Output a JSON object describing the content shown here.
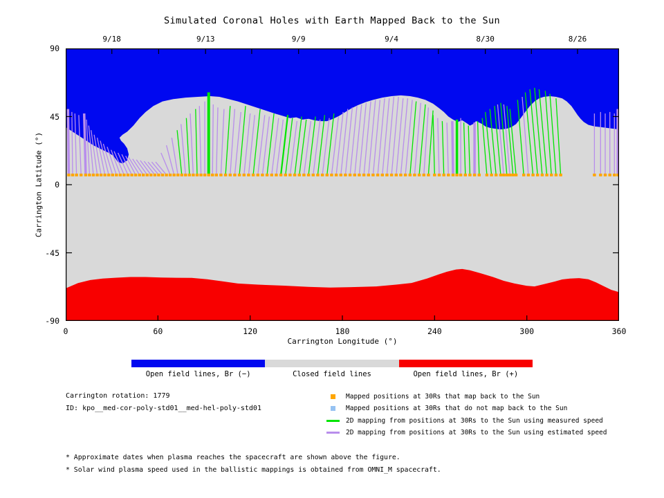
{
  "title": "Simulated Coronal Holes with Earth Mapped Back to the Sun",
  "colors": {
    "open_negative": "#0008f0",
    "closed": "#d9d9d9",
    "open_positive": "#f80000",
    "measured_line": "#00e400",
    "estimated_line": "#b88dec",
    "mapped_point": "#ffa600",
    "unmapped_point": "#96c2f2",
    "axis": "#000000"
  },
  "chart_data": {
    "type": "area",
    "title": "Simulated Coronal Holes with Earth Mapped Back to the Sun",
    "xlabel": "Carrington Longitude (°)",
    "ylabel": "Carrington Latitude (°)",
    "xlim": [
      0,
      360
    ],
    "ylim": [
      -90,
      90
    ],
    "x_ticks": [
      0,
      60,
      120,
      180,
      240,
      300,
      360
    ],
    "y_ticks": [
      90,
      45,
      0,
      -45,
      -90
    ],
    "y_side_ticks": [
      45,
      0,
      -45
    ],
    "top_tick_lons": [
      30,
      60.5,
      91,
      121,
      151.5,
      182,
      212,
      242.5,
      273,
      303,
      333
    ],
    "top_date_labels": [
      {
        "label": "9/18",
        "lon": 30
      },
      {
        "label": "9/13",
        "lon": 91
      },
      {
        "label": "9/9",
        "lon": 151.5
      },
      {
        "label": "9/4",
        "lon": 212
      },
      {
        "label": "8/30",
        "lon": 273
      },
      {
        "label": "8/26",
        "lon": 333
      }
    ],
    "mapped_positions_lat": 6.5,
    "blue_boundary": [
      [
        0,
        38
      ],
      [
        6,
        34
      ],
      [
        12,
        30
      ],
      [
        18,
        26
      ],
      [
        24,
        23
      ],
      [
        28,
        21
      ],
      [
        31,
        19
      ],
      [
        34,
        15
      ],
      [
        37,
        14
      ],
      [
        40,
        16
      ],
      [
        41,
        20
      ],
      [
        40,
        24
      ],
      [
        38,
        27
      ],
      [
        36,
        29
      ],
      [
        35,
        31
      ],
      [
        37,
        33
      ],
      [
        40,
        35
      ],
      [
        44,
        39
      ],
      [
        48,
        44
      ],
      [
        52,
        48
      ],
      [
        57,
        52
      ],
      [
        63,
        55
      ],
      [
        70,
        56.5
      ],
      [
        78,
        57.5
      ],
      [
        86,
        58
      ],
      [
        94,
        58.5
      ],
      [
        100,
        58
      ],
      [
        106,
        56.5
      ],
      [
        112,
        55
      ],
      [
        118,
        53
      ],
      [
        124,
        51
      ],
      [
        130,
        49
      ],
      [
        136,
        47
      ],
      [
        141,
        45.5
      ],
      [
        146,
        44
      ],
      [
        150,
        44.5
      ],
      [
        154,
        43
      ],
      [
        158,
        43.5
      ],
      [
        162,
        42.5
      ],
      [
        166,
        42
      ],
      [
        170,
        42
      ],
      [
        174,
        43.5
      ],
      [
        178,
        45.5
      ],
      [
        182,
        48
      ],
      [
        186,
        50.5
      ],
      [
        190,
        52.5
      ],
      [
        195,
        54.5
      ],
      [
        200,
        56
      ],
      [
        206,
        57.5
      ],
      [
        212,
        58.5
      ],
      [
        218,
        59
      ],
      [
        224,
        58.5
      ],
      [
        229,
        57.5
      ],
      [
        234,
        56
      ],
      [
        239,
        53.5
      ],
      [
        243,
        50.5
      ],
      [
        246,
        48
      ],
      [
        249,
        45
      ],
      [
        252,
        43
      ],
      [
        255,
        41.5
      ],
      [
        258,
        42.5
      ],
      [
        261,
        40.5
      ],
      [
        263,
        39
      ],
      [
        265,
        40
      ],
      [
        267,
        42
      ],
      [
        269,
        41
      ],
      [
        271,
        40
      ],
      [
        273,
        38.5
      ],
      [
        276,
        37.5
      ],
      [
        279,
        37
      ],
      [
        283,
        36.5
      ],
      [
        287,
        37
      ],
      [
        290,
        38
      ],
      [
        293,
        40
      ],
      [
        296,
        44
      ],
      [
        299,
        48
      ],
      [
        302,
        52
      ],
      [
        305,
        55
      ],
      [
        308,
        57
      ],
      [
        311,
        58
      ],
      [
        315,
        58.5
      ],
      [
        319,
        58
      ],
      [
        323,
        57
      ],
      [
        326,
        55
      ],
      [
        329,
        52
      ],
      [
        331,
        49
      ],
      [
        333,
        46
      ],
      [
        335,
        43.5
      ],
      [
        337,
        41.5
      ],
      [
        340,
        39.5
      ],
      [
        344,
        38.5
      ],
      [
        348,
        38
      ],
      [
        352,
        37.5
      ],
      [
        356,
        37
      ],
      [
        360,
        36.5
      ]
    ],
    "red_boundary": [
      [
        0,
        -68.5
      ],
      [
        8,
        -65
      ],
      [
        16,
        -63
      ],
      [
        24,
        -62
      ],
      [
        32,
        -61.5
      ],
      [
        42,
        -61
      ],
      [
        52,
        -61
      ],
      [
        62,
        -61.3
      ],
      [
        72,
        -61.5
      ],
      [
        82,
        -61.6
      ],
      [
        92,
        -62.5
      ],
      [
        102,
        -63.8
      ],
      [
        112,
        -65.3
      ],
      [
        125,
        -66
      ],
      [
        142,
        -66.7
      ],
      [
        158,
        -67.5
      ],
      [
        172,
        -68
      ],
      [
        188,
        -67.6
      ],
      [
        202,
        -67.2
      ],
      [
        215,
        -66
      ],
      [
        225,
        -64.9
      ],
      [
        235,
        -62
      ],
      [
        242,
        -59.5
      ],
      [
        248,
        -57.5
      ],
      [
        254,
        -56
      ],
      [
        258,
        -55.7
      ],
      [
        263,
        -56.5
      ],
      [
        270,
        -58.5
      ],
      [
        278,
        -61
      ],
      [
        285,
        -63.5
      ],
      [
        292,
        -65.3
      ],
      [
        300,
        -66.8
      ],
      [
        305,
        -67.2
      ],
      [
        312,
        -65.5
      ],
      [
        318,
        -64
      ],
      [
        323,
        -62.6
      ],
      [
        328,
        -62
      ],
      [
        334,
        -61.7
      ],
      [
        340,
        -62.5
      ],
      [
        345,
        -64.5
      ],
      [
        350,
        -67
      ],
      [
        355,
        -69.5
      ],
      [
        360,
        -71
      ]
    ],
    "field_lines": [
      [
        2,
        50,
        "p",
        3.5,
        -0.5
      ],
      [
        4.5,
        48,
        "p",
        1.3,
        -0.5
      ],
      [
        7,
        47,
        "p",
        1.3,
        -1
      ],
      [
        10,
        46,
        "p",
        1.3,
        -1.5
      ],
      [
        13,
        47,
        "p",
        3.5,
        -1
      ],
      [
        15.5,
        43,
        "p",
        1.3,
        -2
      ],
      [
        18,
        39,
        "p",
        1.3,
        -3
      ],
      [
        20.5,
        36,
        "p",
        1.3,
        -4
      ],
      [
        23,
        33,
        "p",
        1.3,
        -4.5
      ],
      [
        25.5,
        31,
        "p",
        1.3,
        -5
      ],
      [
        28,
        29,
        "p",
        1.3,
        -5.5
      ],
      [
        30.5,
        27,
        "p",
        1.3,
        -6
      ],
      [
        33,
        25,
        "p",
        1.3,
        -6
      ],
      [
        35.5,
        23,
        "p",
        1.3,
        -6
      ],
      [
        38,
        22,
        "p",
        1.3,
        -6.5
      ],
      [
        40.5,
        21,
        "p",
        1.3,
        -6.5
      ],
      [
        43,
        20,
        "p",
        1.3,
        -6.5
      ],
      [
        45.5,
        19,
        "p",
        1.3,
        -6.5
      ],
      [
        48,
        18,
        "p",
        1.3,
        -7
      ],
      [
        50.5,
        17,
        "p",
        1.3,
        -7
      ],
      [
        53,
        16.5,
        "p",
        1.3,
        -7
      ],
      [
        55.5,
        16,
        "p",
        1.3,
        -7
      ],
      [
        58,
        15.5,
        "p",
        1.3,
        -7
      ],
      [
        60.5,
        15,
        "p",
        1.3,
        -7
      ],
      [
        63,
        15,
        "p",
        1.3,
        -7
      ],
      [
        65.5,
        15,
        "p",
        1.3,
        -7
      ],
      [
        68,
        21,
        "p",
        1.3,
        -6
      ],
      [
        70.5,
        26,
        "p",
        1.3,
        -5
      ],
      [
        73,
        31,
        "p",
        1.3,
        -4
      ],
      [
        75.5,
        36,
        "g",
        1.3,
        -3
      ],
      [
        78,
        40,
        "p",
        1.3,
        -3
      ],
      [
        80.5,
        44,
        "g",
        1.3,
        -2
      ],
      [
        83,
        47,
        "p",
        1.3,
        -2
      ],
      [
        85.5,
        50,
        "g",
        1.3,
        -1
      ],
      [
        88,
        52,
        "p",
        1.3,
        -1
      ],
      [
        90.5,
        55,
        "p",
        1.3,
        0
      ],
      [
        93,
        61,
        "g",
        4,
        0
      ],
      [
        95.5,
        53,
        "p",
        1.3,
        0.5
      ],
      [
        98,
        51,
        "p",
        1.3,
        1
      ],
      [
        101,
        50,
        "p",
        1.3,
        2
      ],
      [
        104,
        52,
        "g",
        1.3,
        3
      ],
      [
        107,
        50,
        "p",
        1.3,
        3
      ],
      [
        110,
        48,
        "p",
        1.3,
        4
      ],
      [
        113,
        52,
        "g",
        1.3,
        4
      ],
      [
        116,
        47,
        "p",
        1.3,
        4
      ],
      [
        119,
        46,
        "p",
        1.3,
        4
      ],
      [
        122,
        50,
        "g",
        1.3,
        4.5
      ],
      [
        125,
        46,
        "p",
        1.3,
        4.5
      ],
      [
        128,
        45,
        "p",
        1.3,
        4.5
      ],
      [
        131,
        47,
        "g",
        1.3,
        4.5
      ],
      [
        134,
        44,
        "p",
        1.3,
        4.5
      ],
      [
        137,
        43,
        "p",
        1.3,
        4.5
      ],
      [
        140,
        46,
        "g",
        2.2,
        4.5
      ],
      [
        143,
        44,
        "g",
        1.3,
        4.5
      ],
      [
        146,
        42,
        "p",
        1.3,
        4.5
      ],
      [
        149,
        45,
        "g",
        1.3,
        4.5
      ],
      [
        152,
        43,
        "g",
        1.3,
        4.5
      ],
      [
        155,
        42,
        "p",
        1.3,
        4.5
      ],
      [
        158,
        45,
        "g",
        1.3,
        4.5
      ],
      [
        161,
        43,
        "p",
        1.3,
        4.5
      ],
      [
        164,
        46,
        "g",
        1.3,
        4.5
      ],
      [
        167,
        44,
        "p",
        1.3,
        4.5
      ],
      [
        170,
        47,
        "g",
        1.3,
        4.5
      ],
      [
        173,
        45,
        "p",
        1.3,
        4.5
      ],
      [
        176,
        48,
        "p",
        1.3,
        4.5
      ],
      [
        179,
        50,
        "p",
        1.3,
        4.5
      ],
      [
        182,
        51,
        "p",
        1.3,
        4.5
      ],
      [
        185,
        52,
        "p",
        1.3,
        4.5
      ],
      [
        188,
        53,
        "p",
        1.3,
        4.5
      ],
      [
        191,
        54,
        "p",
        1.3,
        4.5
      ],
      [
        194,
        55,
        "p",
        1.3,
        4.5
      ],
      [
        197,
        56,
        "p",
        1.3,
        4.5
      ],
      [
        200,
        56,
        "p",
        1.3,
        4.5
      ],
      [
        203,
        57,
        "p",
        1.3,
        4.5
      ],
      [
        206,
        57,
        "p",
        1.3,
        4.5
      ],
      [
        209,
        58,
        "p",
        1.3,
        4.5
      ],
      [
        212,
        58,
        "p",
        1.3,
        4.5
      ],
      [
        215,
        57,
        "p",
        1.3,
        4.5
      ],
      [
        218,
        57,
        "p",
        1.3,
        4.5
      ],
      [
        221,
        56,
        "p",
        1.3,
        4.5
      ],
      [
        224,
        55,
        "g",
        1.3,
        4
      ],
      [
        227,
        54,
        "p",
        1.3,
        4
      ],
      [
        230,
        53,
        "g",
        1.3,
        4
      ],
      [
        233,
        51,
        "p",
        1.3,
        3
      ],
      [
        236,
        49,
        "g",
        1.3,
        3
      ],
      [
        240,
        46,
        "g",
        1.3,
        -1
      ],
      [
        243,
        44,
        "p",
        1.3,
        -1
      ],
      [
        246,
        42,
        "g",
        1.3,
        -1
      ],
      [
        249,
        41,
        "p",
        1.3,
        -1
      ],
      [
        252,
        42,
        "p",
        3.5,
        -0.5
      ],
      [
        254.5,
        43,
        "g",
        3.5,
        0
      ],
      [
        257,
        44,
        "p",
        1.3,
        0
      ],
      [
        260,
        41,
        "g",
        1.3,
        -1
      ],
      [
        263,
        39,
        "g",
        1.3,
        -1
      ],
      [
        266,
        41,
        "p",
        3.5,
        0
      ],
      [
        269,
        42,
        "g",
        1.3,
        -1
      ],
      [
        274,
        44,
        "g",
        1.3,
        -3
      ],
      [
        277,
        48,
        "g",
        1.3,
        -4
      ],
      [
        280,
        50,
        "g",
        1.3,
        -4
      ],
      [
        283,
        52,
        "g",
        1.3,
        -4
      ],
      [
        285,
        53,
        "p",
        1.3,
        -4
      ],
      [
        287,
        54,
        "g",
        1.3,
        -4
      ],
      [
        289,
        53,
        "p",
        1.3,
        -4
      ],
      [
        291,
        52,
        "g",
        1.3,
        -4
      ],
      [
        293,
        50,
        "g",
        1.3,
        -4
      ],
      [
        298,
        56,
        "g",
        1.3,
        -4
      ],
      [
        301,
        58,
        "p",
        1.3,
        -4
      ],
      [
        304,
        61,
        "g",
        1.3,
        -5
      ],
      [
        307,
        63,
        "g",
        1.3,
        -5
      ],
      [
        310,
        64,
        "g",
        1.3,
        -5
      ],
      [
        313,
        63,
        "g",
        1.3,
        -5
      ],
      [
        316,
        62,
        "g",
        1.3,
        -4
      ],
      [
        319,
        60,
        "g",
        1.3,
        -4
      ],
      [
        322,
        57,
        "g",
        1.3,
        -3
      ],
      [
        344,
        47,
        "p",
        1.3,
        0
      ],
      [
        348,
        48,
        "p",
        1.3,
        0
      ],
      [
        351,
        47,
        "p",
        1.3,
        0
      ],
      [
        354,
        48,
        "p",
        1.3,
        0
      ],
      [
        357,
        47,
        "p",
        1.3,
        0
      ],
      [
        359.3,
        50,
        "p",
        4,
        0
      ]
    ]
  },
  "colorbar": {
    "segments": [
      {
        "label": "Open field lines, Br (−)",
        "color_key": "open_negative"
      },
      {
        "label": "Closed field lines",
        "color_key": "closed"
      },
      {
        "label": "Open field lines, Br (+)",
        "color_key": "open_positive"
      }
    ]
  },
  "annotations": {
    "carrington_rotation": "Carrington rotation: 1779",
    "id": "ID: kpo__med-cor-poly-std01__med-hel-poly-std01"
  },
  "legend": [
    {
      "swatch": "square",
      "color_key": "mapped_point",
      "label": "Mapped positions at 30Rs that map back to the Sun"
    },
    {
      "swatch": "square",
      "color_key": "unmapped_point",
      "label": "Mapped positions at 30Rs that do not map back to the Sun"
    },
    {
      "swatch": "line",
      "color_key": "measured_line",
      "label": "2D mapping from positions at 30Rs to the Sun using measured speed"
    },
    {
      "swatch": "line",
      "color_key": "estimated_line",
      "label": "2D mapping from positions at 30Rs to the Sun using estimated speed"
    }
  ],
  "footnotes": [
    "* Approximate dates when plasma reaches the spacecraft are shown above the figure.",
    "* Solar wind plasma speed used in the ballistic mappings is obtained from OMNI_M spacecraft."
  ]
}
